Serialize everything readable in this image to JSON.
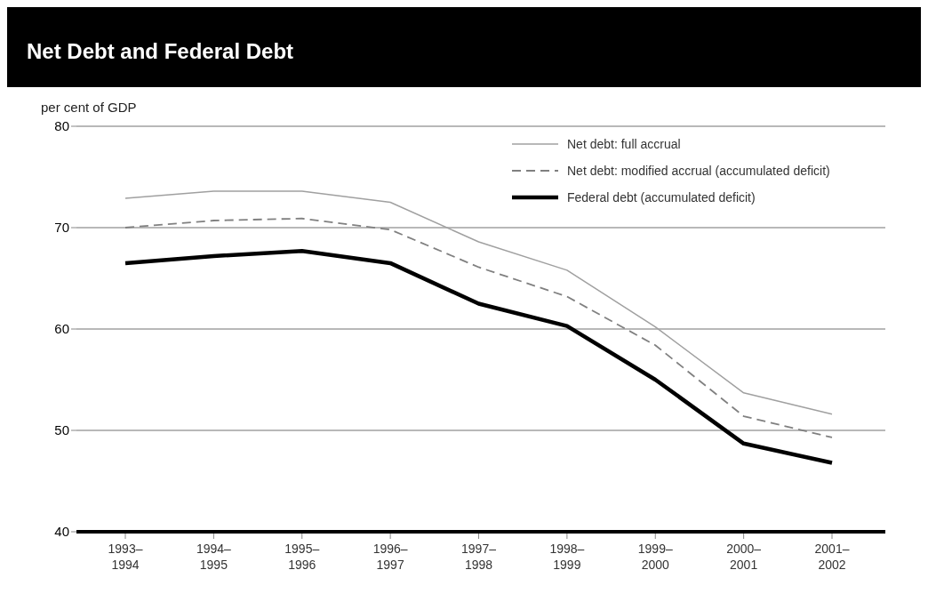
{
  "chart_data": {
    "type": "line",
    "title": "Net Debt and Federal Debt",
    "ylabel": "per cent of GDP",
    "categories": [
      "1993–\n1994",
      "1994–\n1995",
      "1995–\n1996",
      "1996–\n1997",
      "1997–\n1998",
      "1998–\n1999",
      "1999–\n2000",
      "2000–\n2001",
      "2001–\n2002"
    ],
    "series": [
      {
        "name": "Net debt: full accrual",
        "color": "#a0a0a0",
        "line_style": "solid",
        "values": [
          72.9,
          73.6,
          73.6,
          72.5,
          68.6,
          65.8,
          60.2,
          53.7,
          51.6
        ]
      },
      {
        "name": "Net debt: modified accrual (accumulated deficit)",
        "color": "#808080",
        "line_style": "dashed",
        "values": [
          70.0,
          70.7,
          70.9,
          69.8,
          66.1,
          63.2,
          58.4,
          51.4,
          49.3
        ]
      },
      {
        "name": "Federal debt (accumulated deficit)",
        "color": "#000000",
        "line_style": "solid",
        "values": [
          66.5,
          67.2,
          67.7,
          66.5,
          62.5,
          60.3,
          55.0,
          48.7,
          46.8
        ]
      }
    ],
    "ylim": [
      40,
      80
    ],
    "yticks": [
      40,
      50,
      60,
      70,
      80
    ],
    "grid": "y",
    "legend": "top right",
    "marker": "none"
  }
}
